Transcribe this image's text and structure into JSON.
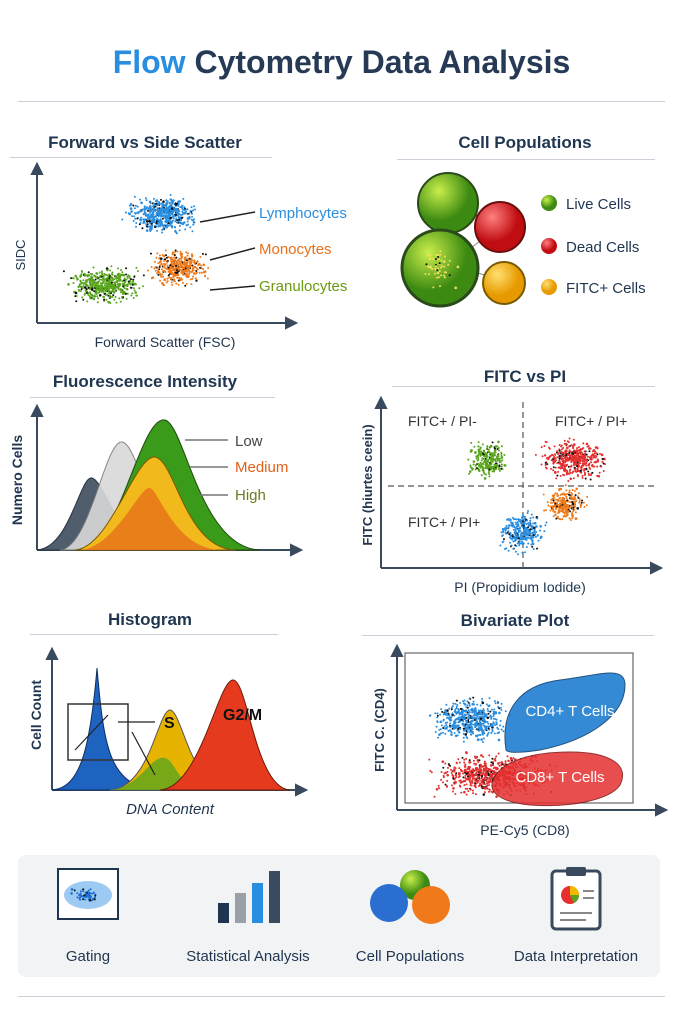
{
  "header": {
    "title_accent": "Flow",
    "title_rest": " Cytometry Data Analysis"
  },
  "colors": {
    "blue": "#2a8ee0",
    "orange": "#f07a1a",
    "green": "#5aa51e",
    "red": "#e53030",
    "yellow": "#f5b800",
    "navy": "#263a55"
  },
  "scatter": {
    "title": "Forward vs Side Scatter",
    "xlabel": "Forward Scatter (FSC)",
    "ylabel": "SIDC",
    "labels": [
      "Lymphocytes",
      "Monocytes",
      "Granulocytes"
    ]
  },
  "populations": {
    "title": "Cell Populations",
    "legend": [
      "Live Cells",
      "Dead Cells",
      "FITC+ Cells"
    ]
  },
  "fluorescence": {
    "title": "Fluorescence Intensity",
    "ylabel": "Numero Cells",
    "legend": [
      "Low",
      "Medium",
      "High"
    ]
  },
  "fitc_pi": {
    "title": "FITC vs PI",
    "xlabel": "PI (Propidium Iodide)",
    "ylabel": "FITC (hiurtes ceein)",
    "quadrants": [
      "FITC+ / PI-",
      "FITC+ / PI+",
      "FITC+ / PI+"
    ]
  },
  "histogram": {
    "title": "Histogram",
    "xlabel": "DNA Content",
    "ylabel": "Cell Count",
    "peaks": [
      "S",
      "G2/M"
    ]
  },
  "bivariate": {
    "title": "Bivariate Plot",
    "xlabel": "PE-Cy5 (CD8)",
    "ylabel": "FITC C. (CD4)",
    "gates": [
      "CD4+ T Cells",
      "CD8+ T Cells"
    ]
  },
  "features": [
    {
      "label": "Gating",
      "icon": "gating-icon"
    },
    {
      "label": "Statistical Analysis",
      "icon": "bar-chart-icon"
    },
    {
      "label": "Cell Populations",
      "icon": "cells-icon"
    },
    {
      "label": "Data Interpretation",
      "icon": "clipboard-icon"
    }
  ]
}
